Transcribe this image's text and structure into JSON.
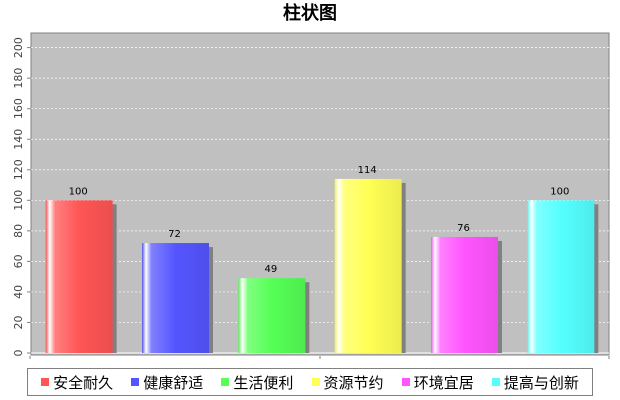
{
  "chart_data": {
    "type": "bar",
    "title": "柱状图",
    "categories": [
      "安全耐久",
      "健康舒适",
      "生活便利",
      "资源节约",
      "环境宜居",
      "提高与创新"
    ],
    "values": [
      100,
      72,
      49,
      114,
      76,
      100
    ],
    "colors": [
      "#ff5555",
      "#5555ff",
      "#55ff55",
      "#ffff55",
      "#ff55ff",
      "#55ffff"
    ],
    "ylim": [
      0,
      210
    ],
    "yticks": [
      0,
      20,
      40,
      60,
      80,
      100,
      120,
      140,
      160,
      180,
      200
    ],
    "grid": true,
    "background": "#c0c0c0",
    "legend_position": "bottom",
    "xlabel": "",
    "ylabel": ""
  }
}
